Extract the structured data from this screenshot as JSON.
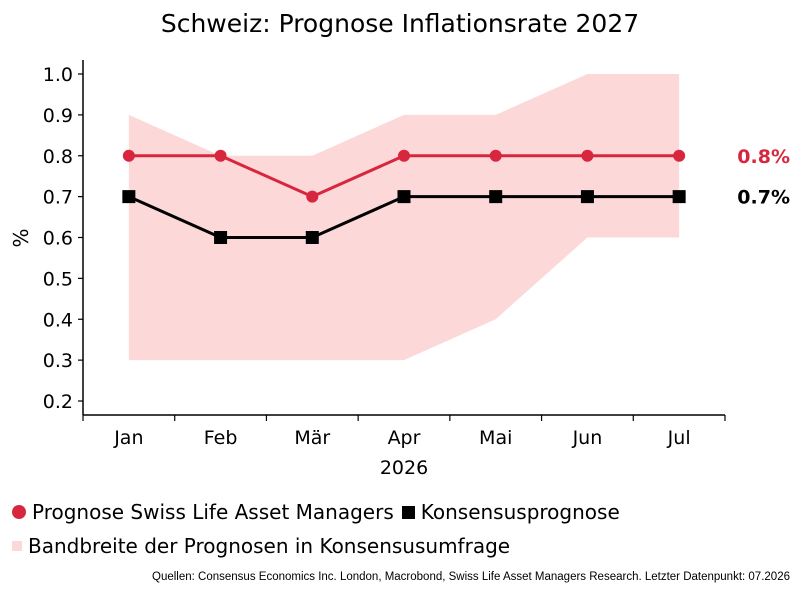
{
  "chart_data": {
    "type": "line",
    "title": "Schweiz: Prognose Inflationsrate 2027",
    "ylabel": "%",
    "xlabel": "2026",
    "categories": [
      "Jan",
      "Feb",
      "Mär",
      "Apr",
      "Mai",
      "Jun",
      "Jul"
    ],
    "ylim": [
      0.2,
      1.0
    ],
    "yticks": [
      "0.2",
      "0.3",
      "0.4",
      "0.5",
      "0.6",
      "0.7",
      "0.8",
      "0.9",
      "1.0"
    ],
    "series": [
      {
        "name": "Prognose Swiss Life Asset Managers",
        "values": [
          0.8,
          0.8,
          0.7,
          0.8,
          0.8,
          0.8,
          0.8
        ],
        "color": "#d7263d",
        "marker": "circle",
        "end_label": "0.8%"
      },
      {
        "name": "Konsensusprognose",
        "values": [
          0.7,
          0.6,
          0.6,
          0.7,
          0.7,
          0.7,
          0.7
        ],
        "color": "#000000",
        "marker": "square",
        "end_label": "0.7%"
      }
    ],
    "band": {
      "name": "Bandbreite der Prognosen in Konsensusumfrage",
      "low": [
        0.3,
        0.3,
        0.3,
        0.3,
        0.4,
        0.6,
        0.6
      ],
      "high": [
        0.9,
        0.8,
        0.8,
        0.9,
        0.9,
        1.0,
        1.0
      ],
      "color": "#fdd8d8"
    },
    "grid": false,
    "legend_position": "bottom-left"
  },
  "source": "Quellen: Consensus Economics Inc. London, Macrobond, Swiss Life Asset Managers Research. Letzter Datenpunkt: 07.2026"
}
